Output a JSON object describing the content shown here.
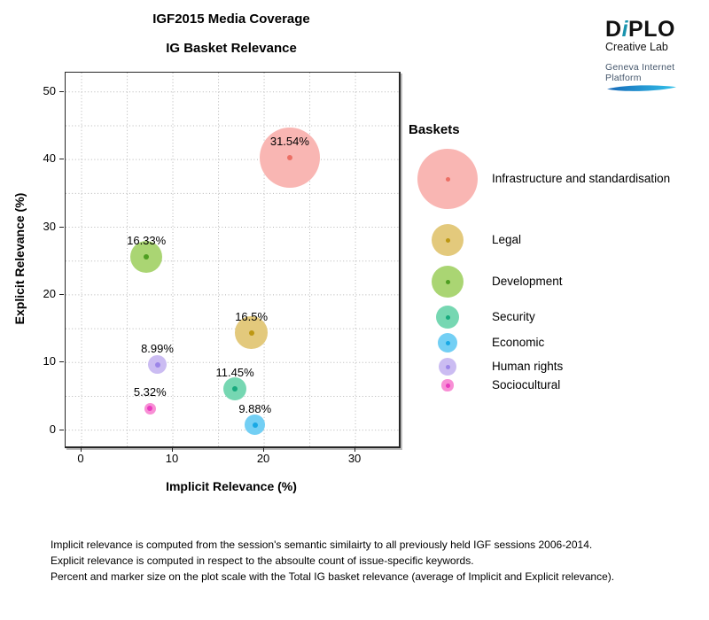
{
  "logo": {
    "brand_prefix": "D",
    "brand_i": "i",
    "brand_suffix": "PLO",
    "accent_color": "#1A93AE",
    "tagline": "Creative Lab",
    "platform": "Geneva Internet Platform"
  },
  "chart_data": {
    "type": "scatter",
    "variant": "bubble",
    "title": "IGF2015 Media Coverage",
    "subtitle": "IG Basket Relevance",
    "xlabel": "Implicit Relevance (%)",
    "ylabel": "Explicit Relevance (%)",
    "xlim": [
      -1.75,
      34.75
    ],
    "ylim": [
      -2.4,
      52.85
    ],
    "x_ticks": [
      0,
      10,
      20,
      30
    ],
    "y_ticks": [
      0,
      10,
      20,
      30,
      40,
      50
    ],
    "grid": {
      "shown": true,
      "step": 5,
      "style": "dotted",
      "color": "#b5b5b5"
    },
    "legend_title": "Baskets",
    "size_rule": "percent and marker size scale with Total IG basket relevance (average of implicit and explicit relevance)",
    "series": [
      {
        "name": "Infrastructure and standardisation",
        "x": 22.8,
        "y": 40.3,
        "total_pct": 31.54,
        "label": "31.54%",
        "fill": "#F9B6B3",
        "dot": "#EC6F65"
      },
      {
        "name": "Legal",
        "x": 18.6,
        "y": 14.4,
        "total_pct": 16.5,
        "label": "16.5%",
        "fill": "#E3C97C",
        "dot": "#BD9712"
      },
      {
        "name": "Development",
        "x": 7.1,
        "y": 25.6,
        "total_pct": 16.33,
        "label": "16.33%",
        "fill": "#AAD573",
        "dot": "#4F9E22"
      },
      {
        "name": "Security",
        "x": 16.8,
        "y": 6.1,
        "total_pct": 11.45,
        "label": "11.45%",
        "fill": "#76D7B2",
        "dot": "#18AA7E"
      },
      {
        "name": "Economic",
        "x": 19.0,
        "y": 0.8,
        "total_pct": 9.88,
        "label": "9.88%",
        "fill": "#73CFF4",
        "dot": "#18A8E5"
      },
      {
        "name": "Human rights",
        "x": 8.3,
        "y": 9.7,
        "total_pct": 8.99,
        "label": "8.99%",
        "fill": "#CBBCF2",
        "dot": "#9C85E8"
      },
      {
        "name": "Sociocultural",
        "x": 7.5,
        "y": 3.2,
        "total_pct": 5.32,
        "label": "5.32%",
        "fill": "#F88FD5",
        "dot": "#E83BBF"
      }
    ]
  },
  "footnotes": [
    "Implicit relevance is computed from the session's semantic similairty to all previously held IGF sessions 2006-2014.",
    "Explicit relevance is computed in respect to the absoulte count of issue-specific keywords.",
    "Percent and marker size on the plot scale with the Total IG basket relevance (average of Implicit and Explicit relevance)."
  ]
}
